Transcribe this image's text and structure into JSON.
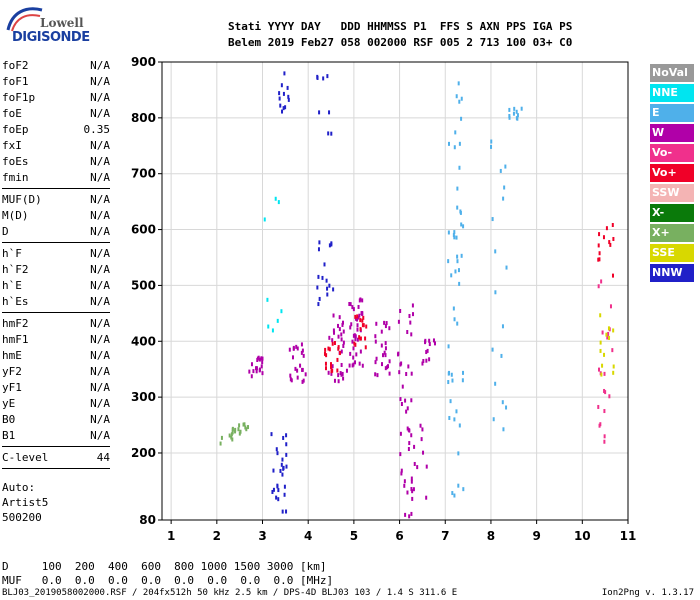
{
  "logo": {
    "line1": "Lowell",
    "line2": "DIGISONDE"
  },
  "header": {
    "line1": "Stati YYYY DAY   DDD HHMMSS P1  FFS S AXN PPS IGA PS",
    "line2": "Belem 2019 Feb27 058 002000 RSF 005 2 713 100 03+ C0"
  },
  "params_group1": [
    {
      "label": "foF2",
      "value": "N/A"
    },
    {
      "label": "foF1",
      "value": "N/A"
    },
    {
      "label": "foF1p",
      "value": "N/A"
    },
    {
      "label": "foE",
      "value": "N/A"
    },
    {
      "label": "foEp",
      "value": "0.35"
    },
    {
      "label": "fxI",
      "value": "N/A"
    },
    {
      "label": "foEs",
      "value": "N/A"
    },
    {
      "label": "fmin",
      "value": "N/A"
    }
  ],
  "params_group2": [
    {
      "label": "MUF(D)",
      "value": "N/A"
    },
    {
      "label": "M(D)",
      "value": "N/A"
    },
    {
      "label": "D",
      "value": "N/A"
    }
  ],
  "params_group3": [
    {
      "label": "h`F",
      "value": "N/A"
    },
    {
      "label": "h`F2",
      "value": "N/A"
    },
    {
      "label": "h`E",
      "value": "N/A"
    },
    {
      "label": "h`Es",
      "value": "N/A"
    }
  ],
  "params_group4": [
    {
      "label": "hmF2",
      "value": "N/A"
    },
    {
      "label": "hmF1",
      "value": "N/A"
    },
    {
      "label": "hmE",
      "value": "N/A"
    },
    {
      "label": "yF2",
      "value": "N/A"
    },
    {
      "label": "yF1",
      "value": "N/A"
    },
    {
      "label": "yE",
      "value": "N/A"
    },
    {
      "label": "B0",
      "value": "N/A"
    },
    {
      "label": "B1",
      "value": "N/A"
    }
  ],
  "params_group5": [
    {
      "label": "C-level",
      "value": "44"
    }
  ],
  "auto": {
    "line1": "Auto:",
    "line2": "Artist5",
    "line3": "500200"
  },
  "bottom": {
    "d_line": "D     100  200  400  600  800 1000 1500 3000 [km]",
    "muf_line": "MUF   0.0  0.0  0.0  0.0  0.0  0.0  0.0  0.0 [MHz]"
  },
  "footer": {
    "left": "BLJ03_2019058002000.RSF / 204fx512h 50 kHz 2.5 km / DPS-4D BLJ03 103 / 1.4 S 311.6 E",
    "right": "Ion2Png v. 1.3.17"
  },
  "legend": [
    {
      "label": "NoVal",
      "color": "#999999"
    },
    {
      "label": "NNE",
      "color": "#00e5f0"
    },
    {
      "label": "E",
      "color": "#4fb0ea"
    },
    {
      "label": "W",
      "color": "#b000a8"
    },
    {
      "label": "Vo-",
      "color": "#f0308c"
    },
    {
      "label": "Vo+",
      "color": "#f00028"
    },
    {
      "label": "SSW",
      "color": "#f4b4b4"
    },
    {
      "label": "X-",
      "color": "#0a7a0a"
    },
    {
      "label": "X+",
      "color": "#78b060"
    },
    {
      "label": "SSE",
      "color": "#d8d800"
    },
    {
      "label": "NNW",
      "color": "#2020c8"
    }
  ],
  "chart_data": {
    "type": "scatter",
    "xlabel": "",
    "ylabel": "",
    "xlim": [
      0.8,
      11
    ],
    "ylim": [
      80,
      900
    ],
    "xticks": [
      1,
      2,
      3,
      4,
      5,
      6,
      7,
      8,
      9,
      10,
      11
    ],
    "yticks": [
      80,
      200,
      300,
      400,
      500,
      600,
      700,
      800,
      900
    ],
    "grid": true,
    "clusters": [
      {
        "color": "#2020c8",
        "x": 3.35,
        "y0": 90,
        "y1": 250,
        "n": 26
      },
      {
        "color": "#2020c8",
        "x": 3.4,
        "y0": 800,
        "y1": 890,
        "n": 12
      },
      {
        "color": "#2020c8",
        "x": 4.35,
        "y0": 470,
        "y1": 590,
        "n": 16
      },
      {
        "color": "#2020c8",
        "x": 4.35,
        "y0": 740,
        "y1": 890,
        "n": 8
      },
      {
        "color": "#b000a8",
        "x": 6.1,
        "y0": 80,
        "y1": 470,
        "n": 40
      },
      {
        "color": "#b000a8",
        "x": 6.4,
        "y0": 120,
        "y1": 260,
        "n": 14
      },
      {
        "color": "#b000a8",
        "x": 5.0,
        "y0": 350,
        "y1": 480,
        "n": 38
      },
      {
        "color": "#b000a8",
        "x": 4.6,
        "y0": 330,
        "y1": 460,
        "n": 30
      },
      {
        "color": "#b000a8",
        "x": 5.6,
        "y0": 340,
        "y1": 440,
        "n": 24
      },
      {
        "color": "#b000a8",
        "x": 3.75,
        "y0": 330,
        "y1": 400,
        "n": 22
      },
      {
        "color": "#b000a8",
        "x": 2.85,
        "y0": 340,
        "y1": 380,
        "n": 18
      },
      {
        "color": "#b000a8",
        "x": 6.6,
        "y0": 360,
        "y1": 430,
        "n": 12
      },
      {
        "color": "#4fb0ea",
        "x": 7.2,
        "y0": 110,
        "y1": 880,
        "n": 50
      },
      {
        "color": "#4fb0ea",
        "x": 8.15,
        "y0": 240,
        "y1": 860,
        "n": 18
      },
      {
        "color": "#4fb0ea",
        "x": 8.5,
        "y0": 800,
        "y1": 820,
        "n": 10
      },
      {
        "color": "#f00028",
        "x": 4.5,
        "y0": 350,
        "y1": 410,
        "n": 18
      },
      {
        "color": "#f00028",
        "x": 5.1,
        "y0": 380,
        "y1": 450,
        "n": 16
      },
      {
        "color": "#f00028",
        "x": 10.5,
        "y0": 520,
        "y1": 620,
        "n": 12
      },
      {
        "color": "#f0308c",
        "x": 10.5,
        "y0": 220,
        "y1": 520,
        "n": 20
      },
      {
        "color": "#d8d800",
        "x": 10.5,
        "y0": 340,
        "y1": 460,
        "n": 12
      },
      {
        "color": "#78b060",
        "x": 2.5,
        "y0": 230,
        "y1": 260,
        "n": 14
      },
      {
        "color": "#78b060",
        "x": 2.2,
        "y0": 220,
        "y1": 240,
        "n": 6
      },
      {
        "color": "#00e5f0",
        "x": 3.25,
        "y0": 420,
        "y1": 520,
        "n": 5
      },
      {
        "color": "#00e5f0",
        "x": 3.2,
        "y0": 620,
        "y1": 660,
        "n": 3
      }
    ]
  }
}
